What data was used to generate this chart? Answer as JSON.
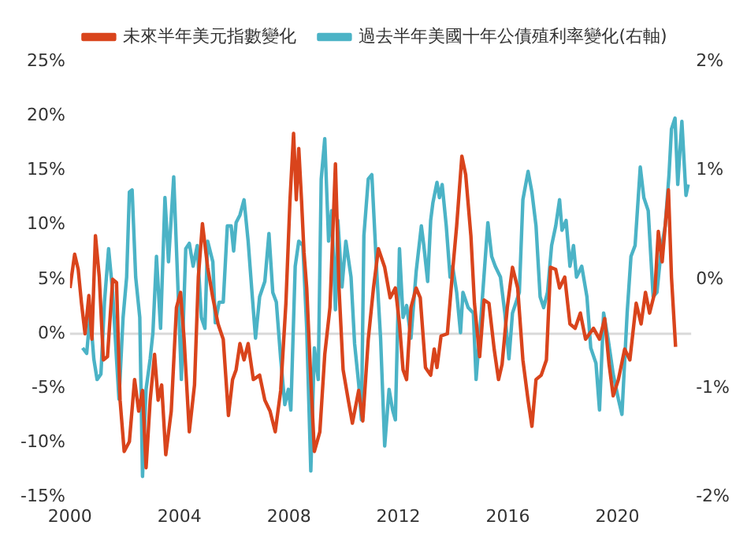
{
  "chart_data": {
    "type": "line",
    "legend": "top",
    "marker": "none",
    "line_style": "solid",
    "grid": false,
    "xlim": [
      2000,
      2022.7
    ],
    "xticks": [
      2000,
      2004,
      2008,
      2012,
      2016,
      2020
    ],
    "ylim": [
      -15,
      25
    ],
    "yticks": [
      {
        "value": -15,
        "label": "-15%"
      },
      {
        "value": -10,
        "label": "-10%"
      },
      {
        "value": -5,
        "label": "-5%"
      },
      {
        "value": 0,
        "label": "0%"
      },
      {
        "value": 5,
        "label": "5%"
      },
      {
        "value": 10,
        "label": "10%"
      },
      {
        "value": 15,
        "label": "15%"
      },
      {
        "value": 20,
        "label": "20%"
      },
      {
        "value": 25,
        "label": "25%"
      }
    ],
    "y2lim": [
      -2,
      2
    ],
    "y2ticks": [
      {
        "value": -2,
        "label": "-2%"
      },
      {
        "value": -1,
        "label": "-1%"
      },
      {
        "value": 0,
        "label": "0%"
      },
      {
        "value": 1,
        "label": "1%"
      },
      {
        "value": 2,
        "label": "2%"
      }
    ],
    "ref_lines": [
      {
        "axis": "y",
        "value": 0,
        "color": "#d9d9d9"
      }
    ],
    "series": [
      {
        "name": "未來半年美元指數變化",
        "color": "#d9441c",
        "x": [
          2000.0,
          2000.17,
          2000.3,
          2000.42,
          2000.55,
          2000.69,
          2000.8,
          2000.93,
          2001.07,
          2001.22,
          2001.37,
          2001.56,
          2001.7,
          2001.83,
          2001.98,
          2002.17,
          2002.36,
          2002.51,
          2002.65,
          2002.78,
          2002.93,
          2003.09,
          2003.22,
          2003.35,
          2003.5,
          2003.7,
          2003.89,
          2004.04,
          2004.17,
          2004.36,
          2004.55,
          2004.69,
          2004.84,
          2005.03,
          2005.22,
          2005.41,
          2005.6,
          2005.79,
          2005.94,
          2006.07,
          2006.21,
          2006.36,
          2006.51,
          2006.7,
          2006.93,
          2007.12,
          2007.31,
          2007.5,
          2007.7,
          2007.89,
          2008.04,
          2008.17,
          2008.27,
          2008.36,
          2008.46,
          2008.55,
          2008.65,
          2008.8,
          2008.93,
          2009.13,
          2009.31,
          2009.5,
          2009.7,
          2009.83,
          2009.98,
          2010.17,
          2010.32,
          2010.55,
          2010.7,
          2010.9,
          2011.09,
          2011.27,
          2011.5,
          2011.7,
          2011.89,
          2012.04,
          2012.17,
          2012.3,
          2012.46,
          2012.65,
          2012.8,
          2012.99,
          2013.18,
          2013.31,
          2013.41,
          2013.56,
          2013.79,
          2013.98,
          2014.13,
          2014.32,
          2014.46,
          2014.65,
          2014.78,
          2014.97,
          2015.13,
          2015.31,
          2015.5,
          2015.66,
          2015.79,
          2015.98,
          2016.17,
          2016.36,
          2016.55,
          2016.74,
          2016.88,
          2017.03,
          2017.22,
          2017.41,
          2017.56,
          2017.75,
          2017.89,
          2018.08,
          2018.27,
          2018.46,
          2018.65,
          2018.84,
          2019.13,
          2019.35,
          2019.54,
          2019.7,
          2019.85,
          2020.04,
          2020.27,
          2020.46,
          2020.69,
          2020.87,
          2021.03,
          2021.18,
          2021.37,
          2021.5,
          2021.64,
          2021.75,
          2021.87,
          2021.98,
          2022.13
        ],
        "values": [
          4.2,
          7.3,
          5.9,
          2.8,
          0,
          3.5,
          -0.5,
          9.0,
          5.2,
          -2.4,
          -2.1,
          5.0,
          4.7,
          -6.1,
          -10.8,
          -9.9,
          -4.2,
          -7.1,
          -5.2,
          -12.3,
          -6.1,
          -1.9,
          -6.1,
          -4.7,
          -11.1,
          -7.1,
          2.4,
          3.8,
          -0.5,
          -9.0,
          -4.7,
          5.2,
          10.1,
          6.1,
          3.3,
          0.9,
          -0.5,
          -7.5,
          -4.2,
          -3.3,
          -0.9,
          -2.4,
          -0.9,
          -4.2,
          -3.8,
          -6.1,
          -7.1,
          -9.0,
          -5.2,
          2.8,
          12.3,
          18.4,
          12.3,
          17.0,
          12.3,
          7.5,
          4.2,
          -4.2,
          -10.8,
          -9.0,
          -1.9,
          2.4,
          15.6,
          4.2,
          -3.3,
          -6.1,
          -8.2,
          -5.2,
          -8.0,
          -0.5,
          4.2,
          7.8,
          6.1,
          3.3,
          4.2,
          0.9,
          -3.3,
          -4.2,
          2.4,
          4.2,
          3.3,
          -3.1,
          -3.8,
          -1.4,
          -3.1,
          -0.2,
          0,
          5.7,
          9.9,
          16.3,
          14.6,
          9.0,
          2.8,
          -2.1,
          3.1,
          2.8,
          -1.4,
          -4.2,
          -2.8,
          2.4,
          6.1,
          4.2,
          -2.4,
          -6.1,
          -8.5,
          -4.2,
          -3.8,
          -2.4,
          6.1,
          5.9,
          4.2,
          5.2,
          0.9,
          0.5,
          1.9,
          -0.5,
          0.5,
          -0.5,
          1.4,
          -2.8,
          -5.7,
          -4.2,
          -1.4,
          -2.4,
          2.8,
          0.9,
          3.8,
          1.9,
          3.8,
          9.4,
          6.6,
          9.9,
          13.2,
          5.2,
          -1.2
        ]
      },
      {
        "name": "過去半年美國十年公債殖利率變化(右軸)",
        "color": "#4bb3c6",
        "axis": "y2",
        "x": [
          2000.46,
          2000.61,
          2000.74,
          2000.87,
          2000.99,
          2001.13,
          2001.26,
          2001.41,
          2001.56,
          2001.7,
          2001.79,
          2001.94,
          2002.07,
          2002.17,
          2002.27,
          2002.4,
          2002.55,
          2002.65,
          2002.78,
          2002.93,
          2003.03,
          2003.16,
          2003.31,
          2003.47,
          2003.6,
          2003.79,
          2003.93,
          2004.07,
          2004.23,
          2004.36,
          2004.5,
          2004.65,
          2004.8,
          2004.93,
          2005.03,
          2005.22,
          2005.31,
          2005.45,
          2005.6,
          2005.75,
          2005.89,
          2005.98,
          2006.07,
          2006.21,
          2006.36,
          2006.51,
          2006.65,
          2006.78,
          2006.93,
          2007.12,
          2007.27,
          2007.41,
          2007.54,
          2007.7,
          2007.85,
          2007.98,
          2008.07,
          2008.23,
          2008.36,
          2008.51,
          2008.65,
          2008.8,
          2008.93,
          2009.07,
          2009.18,
          2009.31,
          2009.45,
          2009.56,
          2009.7,
          2009.79,
          2009.94,
          2010.08,
          2010.27,
          2010.4,
          2010.55,
          2010.65,
          2010.74,
          2010.9,
          2011.03,
          2011.22,
          2011.35,
          2011.5,
          2011.66,
          2011.79,
          2011.89,
          2012.04,
          2012.17,
          2012.3,
          2012.46,
          2012.65,
          2012.84,
          2012.93,
          2013.07,
          2013.18,
          2013.26,
          2013.41,
          2013.5,
          2013.6,
          2013.75,
          2013.89,
          2013.98,
          2014.13,
          2014.27,
          2014.36,
          2014.55,
          2014.74,
          2014.84,
          2015.03,
          2015.27,
          2015.41,
          2015.54,
          2015.73,
          2015.89,
          2016.04,
          2016.17,
          2016.42,
          2016.55,
          2016.74,
          2016.88,
          2017.03,
          2017.18,
          2017.31,
          2017.45,
          2017.6,
          2017.75,
          2017.89,
          2017.98,
          2018.13,
          2018.27,
          2018.4,
          2018.51,
          2018.7,
          2018.89,
          2019.03,
          2019.22,
          2019.35,
          2019.5,
          2019.66,
          2019.85,
          2020.04,
          2020.17,
          2020.36,
          2020.5,
          2020.65,
          2020.84,
          2020.97,
          2021.13,
          2021.31,
          2021.45,
          2021.6,
          2021.75,
          2021.89,
          2021.98,
          2022.11,
          2022.21,
          2022.36,
          2022.51,
          2022.59
        ],
        "values": [
          -0.63,
          -0.68,
          -0.31,
          -0.73,
          -0.92,
          -0.87,
          -0.21,
          0.28,
          -0.12,
          -0.73,
          -1.1,
          -0.35,
          0.02,
          0.8,
          0.82,
          0.02,
          -0.35,
          -1.81,
          -1.01,
          -0.73,
          -0.49,
          0.21,
          -0.45,
          0.75,
          0.16,
          0.94,
          0.02,
          -0.92,
          0.28,
          0.33,
          0.12,
          0.31,
          -0.35,
          -0.45,
          0.35,
          0.16,
          -0.4,
          -0.21,
          -0.21,
          0.49,
          0.49,
          0.26,
          0.52,
          0.59,
          0.73,
          0.35,
          -0.12,
          -0.54,
          -0.16,
          -0.02,
          0.42,
          -0.12,
          -0.21,
          -0.73,
          -1.15,
          -1.01,
          -1.2,
          0.12,
          0.35,
          0.31,
          -0.45,
          -1.76,
          -0.63,
          -0.92,
          0.92,
          1.29,
          0.35,
          0.63,
          -0.28,
          0.54,
          -0.07,
          0.35,
          0.02,
          -0.59,
          -0.96,
          -1.29,
          0.4,
          0.92,
          0.96,
          0.02,
          -0.54,
          -1.53,
          -1.01,
          -1.2,
          -1.29,
          0.28,
          -0.35,
          -0.24,
          -0.54,
          0.07,
          0.49,
          0.31,
          -0.02,
          0.54,
          0.7,
          0.89,
          0.75,
          0.87,
          0.49,
          0.02,
          0.12,
          -0.12,
          -0.49,
          -0.12,
          -0.26,
          -0.31,
          -0.92,
          -0.31,
          0.52,
          0.21,
          0.12,
          0.02,
          -0.31,
          -0.73,
          -0.31,
          -0.12,
          0.73,
          0.99,
          0.8,
          0.49,
          -0.16,
          -0.26,
          -0.12,
          0.31,
          0.49,
          0.73,
          0.45,
          0.54,
          0.12,
          0.31,
          0.02,
          0.12,
          -0.16,
          -0.63,
          -0.77,
          -1.2,
          -0.31,
          -0.54,
          -0.87,
          -1.1,
          -1.24,
          -0.31,
          0.21,
          0.31,
          1.03,
          0.75,
          0.63,
          -0.16,
          -0.12,
          0.26,
          0.49,
          0.96,
          1.38,
          1.48,
          0.87,
          1.45,
          0.77,
          0.87
        ]
      }
    ]
  }
}
